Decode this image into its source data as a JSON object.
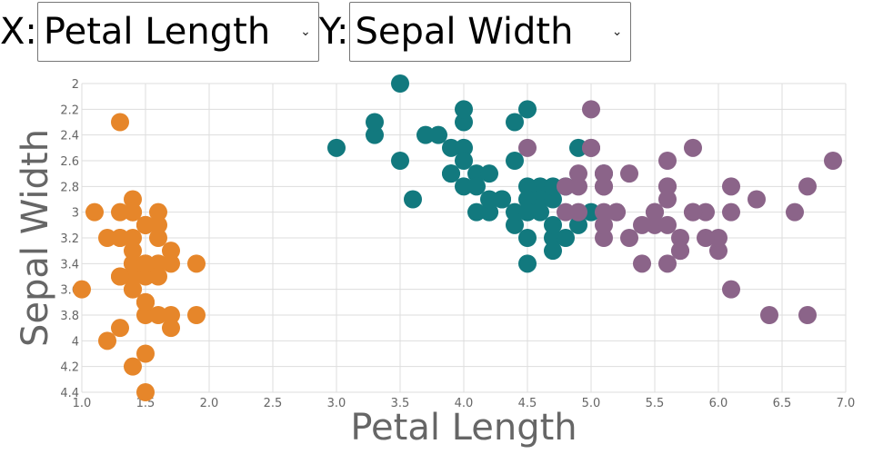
{
  "controls": {
    "x_label": "X:",
    "x_selected": "Petal Length",
    "y_label": "Y:",
    "y_selected": "Sepal Width"
  },
  "colors": {
    "orange": "#e6862a",
    "teal": "#12797e",
    "purple": "#8b6489",
    "grid": "#dddddd"
  },
  "chart_data": {
    "type": "scatter",
    "xlabel": "Petal Length",
    "ylabel": "Sepal Width",
    "xlim": [
      1.0,
      7.0
    ],
    "ylim": [
      2.0,
      4.4
    ],
    "y_inverted": true,
    "x_ticks": [
      "1.0",
      "1.5",
      "2.0",
      "2.5",
      "3.0",
      "3.5",
      "4.0",
      "4.5",
      "5.0",
      "5.5",
      "6.0",
      "6.5",
      "7.0"
    ],
    "y_ticks": [
      "2",
      "2.2",
      "2.4",
      "2.6",
      "2.8",
      "3",
      "3.2",
      "3.4",
      "3.6",
      "3.8",
      "4",
      "4.2",
      "4.4"
    ],
    "grid": true,
    "series": [
      {
        "color": "#e6862a",
        "points": [
          [
            1.4,
            3.5
          ],
          [
            1.4,
            3.0
          ],
          [
            1.3,
            3.2
          ],
          [
            1.5,
            3.1
          ],
          [
            1.4,
            3.6
          ],
          [
            1.7,
            3.9
          ],
          [
            1.4,
            3.4
          ],
          [
            1.5,
            3.4
          ],
          [
            1.4,
            2.9
          ],
          [
            1.5,
            3.1
          ],
          [
            1.5,
            3.7
          ],
          [
            1.6,
            3.4
          ],
          [
            1.4,
            3.0
          ],
          [
            1.1,
            3.0
          ],
          [
            1.2,
            4.0
          ],
          [
            1.5,
            4.4
          ],
          [
            1.3,
            3.9
          ],
          [
            1.4,
            3.5
          ],
          [
            1.7,
            3.8
          ],
          [
            1.5,
            3.8
          ],
          [
            1.7,
            3.4
          ],
          [
            1.5,
            3.7
          ],
          [
            1.0,
            3.6
          ],
          [
            1.7,
            3.3
          ],
          [
            1.9,
            3.4
          ],
          [
            1.6,
            3.0
          ],
          [
            1.6,
            3.4
          ],
          [
            1.5,
            3.5
          ],
          [
            1.4,
            3.4
          ],
          [
            1.6,
            3.2
          ],
          [
            1.6,
            3.1
          ],
          [
            1.5,
            3.4
          ],
          [
            1.5,
            4.1
          ],
          [
            1.4,
            4.2
          ],
          [
            1.5,
            3.1
          ],
          [
            1.2,
            3.2
          ],
          [
            1.3,
            3.5
          ],
          [
            1.4,
            3.6
          ],
          [
            1.3,
            3.0
          ],
          [
            1.5,
            3.4
          ],
          [
            1.3,
            3.5
          ],
          [
            1.3,
            2.3
          ],
          [
            1.3,
            3.2
          ],
          [
            1.6,
            3.5
          ],
          [
            1.9,
            3.8
          ],
          [
            1.4,
            3.0
          ],
          [
            1.6,
            3.8
          ],
          [
            1.4,
            3.2
          ],
          [
            1.5,
            3.7
          ],
          [
            1.4,
            3.3
          ]
        ]
      },
      {
        "color": "#12797e",
        "points": [
          [
            4.7,
            3.2
          ],
          [
            4.5,
            3.2
          ],
          [
            4.9,
            3.1
          ],
          [
            4.0,
            2.3
          ],
          [
            4.6,
            2.8
          ],
          [
            4.5,
            2.8
          ],
          [
            4.7,
            3.3
          ],
          [
            3.3,
            2.4
          ],
          [
            4.6,
            2.9
          ],
          [
            3.9,
            2.7
          ],
          [
            3.5,
            2.0
          ],
          [
            4.2,
            3.0
          ],
          [
            4.0,
            2.2
          ],
          [
            4.7,
            2.9
          ],
          [
            3.6,
            2.9
          ],
          [
            4.4,
            3.1
          ],
          [
            4.5,
            3.0
          ],
          [
            4.1,
            2.7
          ],
          [
            4.5,
            2.2
          ],
          [
            3.9,
            2.5
          ],
          [
            4.8,
            3.2
          ],
          [
            4.0,
            2.8
          ],
          [
            4.9,
            2.5
          ],
          [
            4.7,
            2.8
          ],
          [
            4.3,
            2.9
          ],
          [
            4.4,
            3.0
          ],
          [
            4.8,
            2.8
          ],
          [
            5.0,
            3.0
          ],
          [
            4.5,
            2.9
          ],
          [
            3.5,
            2.6
          ],
          [
            3.8,
            2.4
          ],
          [
            3.7,
            2.4
          ],
          [
            3.9,
            2.7
          ],
          [
            5.1,
            2.7
          ],
          [
            4.5,
            3.0
          ],
          [
            4.5,
            3.4
          ],
          [
            4.7,
            3.1
          ],
          [
            4.4,
            2.3
          ],
          [
            4.1,
            3.0
          ],
          [
            4.0,
            2.5
          ],
          [
            4.4,
            2.6
          ],
          [
            4.6,
            3.0
          ],
          [
            4.0,
            2.6
          ],
          [
            3.3,
            2.3
          ],
          [
            4.2,
            2.7
          ],
          [
            4.2,
            3.0
          ],
          [
            4.2,
            2.9
          ],
          [
            4.3,
            2.9
          ],
          [
            3.0,
            2.5
          ],
          [
            4.1,
            2.8
          ]
        ]
      },
      {
        "color": "#8b6489",
        "points": [
          [
            6.0,
            3.3
          ],
          [
            5.1,
            2.7
          ],
          [
            5.9,
            3.0
          ],
          [
            5.6,
            2.9
          ],
          [
            5.8,
            3.0
          ],
          [
            6.6,
            3.0
          ],
          [
            4.5,
            2.5
          ],
          [
            6.3,
            2.9
          ],
          [
            5.8,
            2.5
          ],
          [
            6.1,
            3.6
          ],
          [
            5.1,
            3.2
          ],
          [
            5.3,
            2.7
          ],
          [
            5.5,
            3.0
          ],
          [
            5.0,
            2.5
          ],
          [
            5.1,
            2.8
          ],
          [
            5.3,
            3.2
          ],
          [
            5.5,
            3.0
          ],
          [
            6.7,
            3.8
          ],
          [
            6.9,
            2.6
          ],
          [
            5.0,
            2.2
          ],
          [
            5.7,
            3.2
          ],
          [
            4.9,
            2.8
          ],
          [
            6.7,
            2.8
          ],
          [
            4.9,
            2.7
          ],
          [
            5.7,
            3.3
          ],
          [
            6.0,
            3.2
          ],
          [
            4.8,
            2.8
          ],
          [
            4.9,
            3.0
          ],
          [
            5.6,
            2.8
          ],
          [
            5.8,
            3.0
          ],
          [
            6.1,
            2.8
          ],
          [
            6.4,
            3.8
          ],
          [
            5.6,
            2.8
          ],
          [
            5.1,
            2.8
          ],
          [
            5.6,
            2.6
          ],
          [
            6.1,
            3.0
          ],
          [
            5.6,
            3.4
          ],
          [
            5.5,
            3.1
          ],
          [
            4.8,
            3.0
          ],
          [
            5.4,
            3.1
          ],
          [
            5.6,
            3.1
          ],
          [
            5.1,
            3.1
          ],
          [
            5.1,
            2.7
          ],
          [
            5.9,
            3.2
          ],
          [
            5.7,
            3.3
          ],
          [
            5.2,
            3.0
          ],
          [
            5.0,
            2.5
          ],
          [
            5.2,
            3.0
          ],
          [
            5.4,
            3.4
          ],
          [
            5.1,
            3.0
          ]
        ]
      }
    ]
  }
}
